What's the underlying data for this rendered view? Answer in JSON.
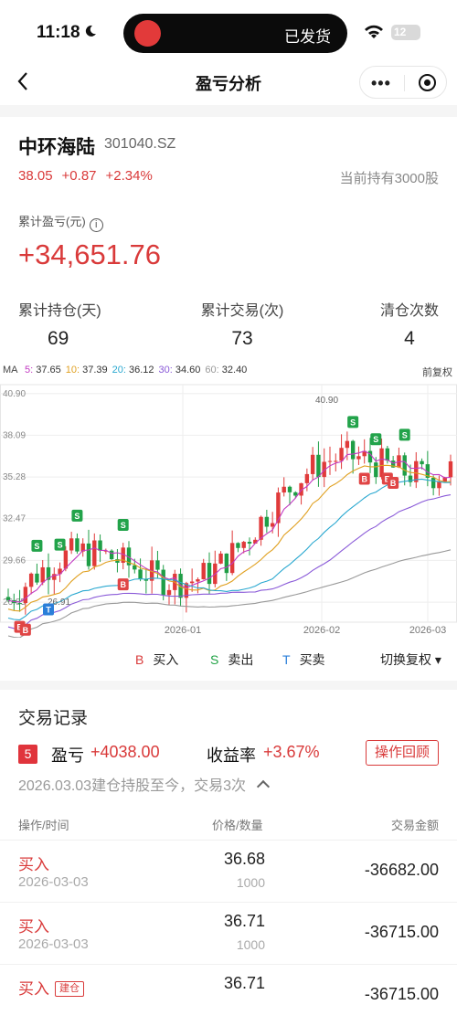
{
  "status": {
    "time": "11:18",
    "activity": "已发货",
    "battery": "12"
  },
  "nav": {
    "title": "盈亏分析"
  },
  "stock": {
    "name": "中环海陆",
    "code": "301040.SZ",
    "price": "38.05",
    "change": "+0.87",
    "change_pct": "+2.34%",
    "holding": "当前持有3000股"
  },
  "summary": {
    "cum_label": "累计盈亏(元)",
    "cum_value": "+34,651.76",
    "stats": [
      {
        "label": "累计持仓(天)",
        "value": "69"
      },
      {
        "label": "累计交易(次)",
        "value": "73"
      },
      {
        "label": "清仓次数",
        "value": "4"
      }
    ]
  },
  "ma": {
    "prefix": "MA",
    "items": [
      {
        "k": "5:",
        "v": "37.65",
        "color": "#c23ac2"
      },
      {
        "k": "10:",
        "v": "37.39",
        "color": "#e0a020"
      },
      {
        "k": "20:",
        "v": "36.12",
        "color": "#2aa8d0"
      },
      {
        "k": "30:",
        "v": "34.60",
        "color": "#8a5ad8"
      },
      {
        "k": "60:",
        "v": "32.40",
        "color": "#999999"
      }
    ],
    "adjust": "前复权"
  },
  "chart_data": {
    "type": "candlestick",
    "y_ticks": [
      "40.90",
      "38.09",
      "35.28",
      "32.47",
      "29.66",
      "26.85"
    ],
    "x_ticks": [
      "2026-01",
      "2026-02",
      "2026-03"
    ],
    "annotations": {
      "max": "40.90",
      "min": "26.91"
    },
    "markers": [
      "B",
      "S",
      "T"
    ],
    "ylim": [
      25.5,
      41.5
    ]
  },
  "legend": {
    "buy": {
      "k": "B",
      "label": "买入"
    },
    "sell": {
      "k": "S",
      "label": "卖出"
    },
    "t": {
      "k": "T",
      "label": "买卖"
    },
    "switch": "切换复权"
  },
  "records": {
    "title": "交易记录",
    "index": "5",
    "pl_label": "盈亏",
    "pl_value": "+4038.00",
    "rate_label": "收益率",
    "rate_value": "+3.67%",
    "review_button": "操作回顾",
    "subtitle": "2026.03.03建仓持股至今，交易3次",
    "headers": {
      "op": "操作/时间",
      "pq": "价格/数量",
      "amount": "交易金额"
    },
    "rows": [
      {
        "action": "买入",
        "tag": "",
        "date": "2026-03-03",
        "price": "36.68",
        "qty": "1000",
        "amount": "-36682.00"
      },
      {
        "action": "买入",
        "tag": "",
        "date": "2026-03-03",
        "price": "36.71",
        "qty": "1000",
        "amount": "-36715.00"
      },
      {
        "action": "买入",
        "tag": "建仓",
        "date": "",
        "price": "36.71",
        "qty": "",
        "amount": "-36715.00"
      }
    ]
  }
}
